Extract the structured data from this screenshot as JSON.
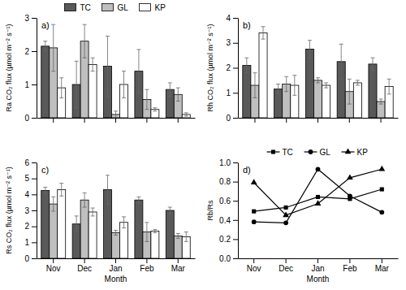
{
  "chart_data": [
    {
      "type": "bar",
      "title": "a)",
      "y_label": "Ra CO₂ flux (µmol m⁻² s⁻¹)",
      "categories": [
        "Nov",
        "Dec",
        "Jan",
        "Feb",
        "Mar"
      ],
      "series": [
        {
          "name": "TC",
          "color": "#595959",
          "values": [
            2.15,
            1.0,
            1.55,
            1.4,
            0.85
          ],
          "error": [
            0.15,
            0.7,
            0.9,
            0.65,
            0.2
          ]
        },
        {
          "name": "GL",
          "color": "#bfbfbf",
          "values": [
            2.1,
            2.3,
            0.1,
            0.55,
            0.7
          ],
          "error": [
            0.7,
            0.5,
            0.1,
            0.3,
            0.2
          ]
        },
        {
          "name": "KP",
          "color": "#ffffff",
          "values": [
            0.9,
            1.6,
            1.0,
            0.25,
            0.1
          ],
          "error": [
            0.3,
            0.2,
            0.4,
            0.05,
            0.05
          ]
        }
      ],
      "ylim": [
        0,
        3
      ],
      "yticks": [
        0,
        1,
        2,
        3
      ],
      "legend": "top",
      "tick_labels": "y"
    },
    {
      "type": "bar",
      "title": "b)",
      "y_label": "Rh CO₂ flux (µmol m⁻² s⁻¹)",
      "categories": [
        "Nov",
        "Dec",
        "Jan",
        "Feb",
        "Mar"
      ],
      "series": [
        {
          "name": "TC",
          "color": "#595959",
          "values": [
            2.1,
            1.15,
            2.75,
            2.25,
            2.15
          ],
          "error": [
            0.3,
            0.2,
            0.35,
            0.7,
            0.25
          ]
        },
        {
          "name": "GL",
          "color": "#bfbfbf",
          "values": [
            1.3,
            1.35,
            1.5,
            1.05,
            0.65
          ],
          "error": [
            0.5,
            0.3,
            0.1,
            0.5,
            0.1
          ]
        },
        {
          "name": "KP",
          "color": "#ffffff",
          "values": [
            3.4,
            1.3,
            1.3,
            1.4,
            1.25
          ],
          "error": [
            0.25,
            0.4,
            0.1,
            0.1,
            0.3
          ]
        }
      ],
      "ylim": [
        0,
        4
      ],
      "yticks": [
        0,
        1,
        2,
        3,
        4
      ],
      "tick_labels": "y"
    },
    {
      "type": "bar",
      "title": "c)",
      "y_label": "Rs CO₂ flux (µmol m⁻² s⁻¹)",
      "x_label": "Month",
      "categories": [
        "Nov",
        "Dec",
        "Jan",
        "Feb",
        "Mar"
      ],
      "series": [
        {
          "name": "TC",
          "color": "#595959",
          "values": [
            4.25,
            2.15,
            4.3,
            3.65,
            3.0
          ],
          "error": [
            0.2,
            0.5,
            0.9,
            0.2,
            0.2
          ]
        },
        {
          "name": "GL",
          "color": "#bfbfbf",
          "values": [
            3.4,
            3.65,
            1.6,
            1.65,
            1.4
          ],
          "error": [
            0.45,
            0.45,
            0.15,
            0.6,
            0.15
          ]
        },
        {
          "name": "KP",
          "color": "#ffffff",
          "values": [
            4.3,
            2.9,
            2.25,
            1.7,
            1.35
          ],
          "error": [
            0.4,
            0.25,
            0.35,
            0.1,
            0.3
          ]
        }
      ],
      "ylim": [
        0,
        6
      ],
      "yticks": [
        0,
        1,
        2,
        3,
        4,
        5,
        6
      ]
    },
    {
      "type": "line",
      "title": "d)",
      "y_label": "Rb/Rs",
      "x_label": "Month",
      "categories": [
        "Nov",
        "Dec",
        "Jan",
        "Feb",
        "Mar"
      ],
      "series": [
        {
          "name": "TC",
          "color": "#000000",
          "marker": "square",
          "values": [
            0.49,
            0.53,
            0.64,
            0.62,
            0.72
          ]
        },
        {
          "name": "GL",
          "color": "#000000",
          "marker": "circle",
          "values": [
            0.38,
            0.37,
            0.93,
            0.65,
            0.48
          ]
        },
        {
          "name": "KP",
          "color": "#000000",
          "marker": "triangle",
          "values": [
            0.79,
            0.45,
            0.57,
            0.84,
            0.93
          ]
        }
      ],
      "ylim": [
        0,
        1
      ],
      "yticks": [
        {
          "value": 0,
          "label": "0.0"
        },
        0.2,
        0.4,
        0.6,
        0.8,
        {
          "value": 1,
          "label": "1.0"
        }
      ],
      "legend": "top"
    }
  ]
}
